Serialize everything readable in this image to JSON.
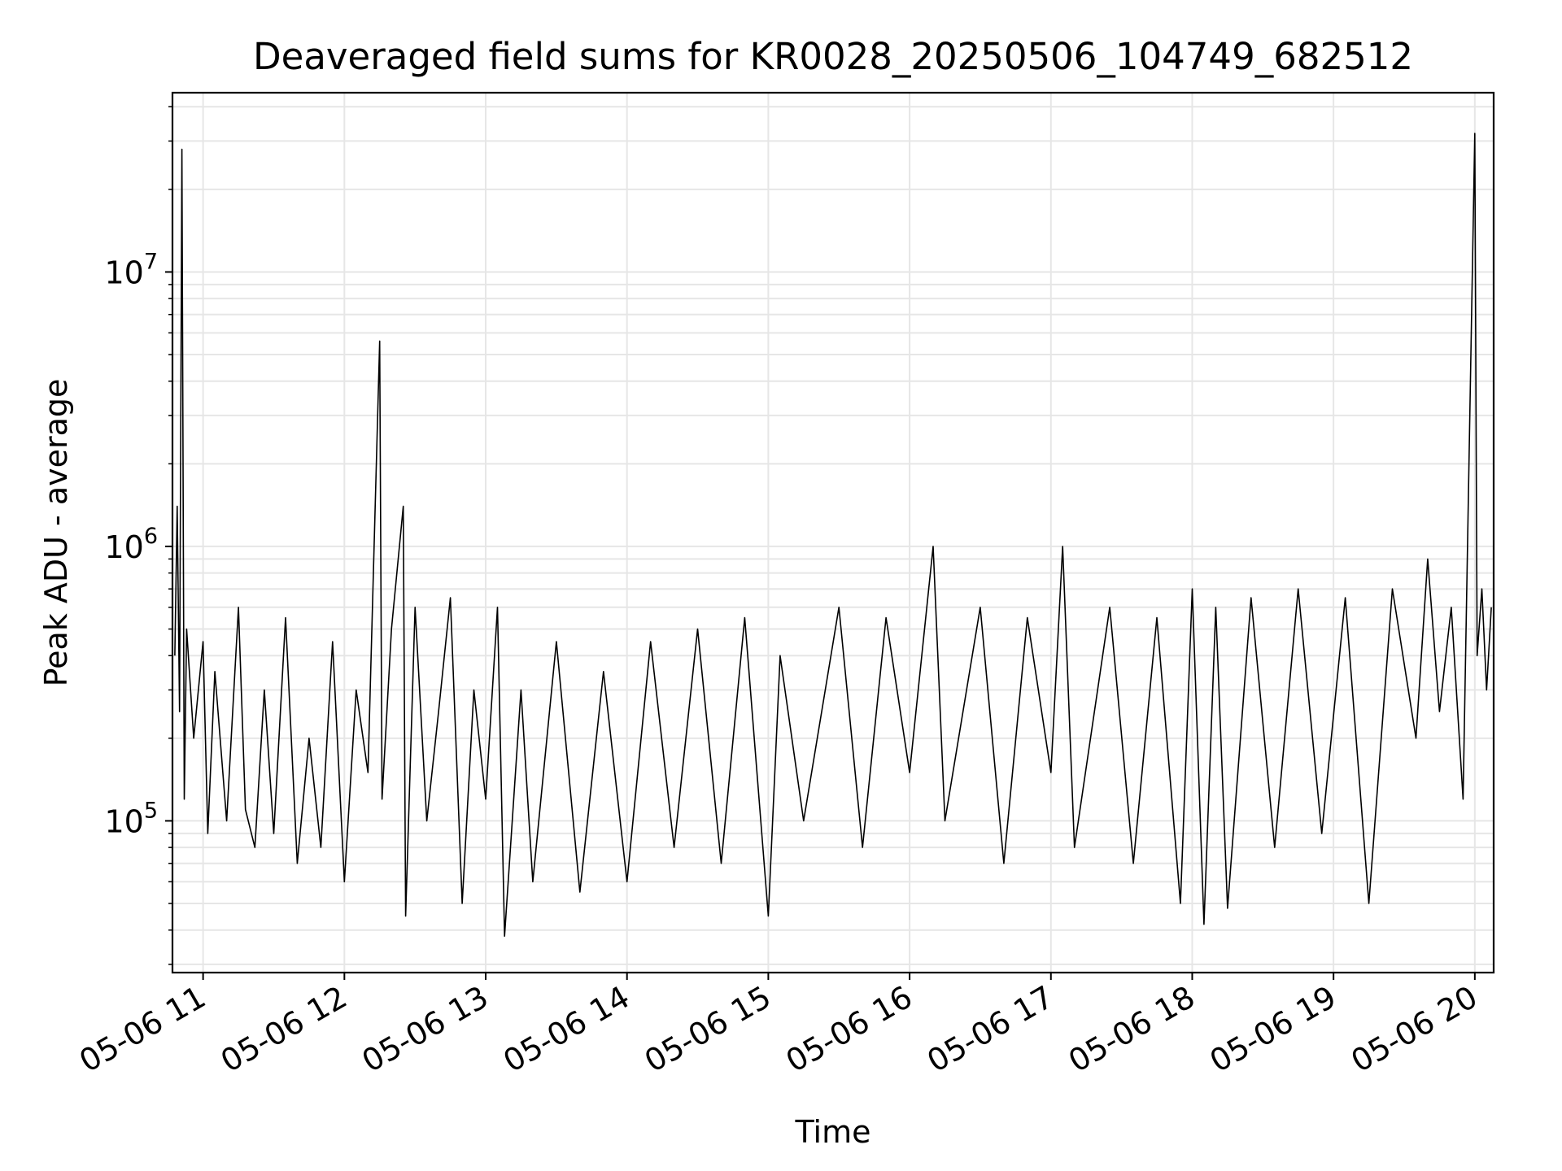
{
  "chart_data": {
    "type": "line",
    "title": "Deaveraged field sums for KR0028_20250506_104749_682512",
    "xlabel": "Time",
    "ylabel": "Peak ADU - average",
    "x_start": "05-06 10:47",
    "x_end": "05-06 20:08",
    "ylim": [
      28000,
      45000000
    ],
    "yscale": "log",
    "grid": true,
    "line_color": "#000000",
    "grid_color": "#e6e6e6",
    "x_ticks": [
      {
        "value": "05-06 11:00",
        "label": "05-06 11"
      },
      {
        "value": "05-06 12:00",
        "label": "05-06 12"
      },
      {
        "value": "05-06 13:00",
        "label": "05-06 13"
      },
      {
        "value": "05-06 14:00",
        "label": "05-06 14"
      },
      {
        "value": "05-06 15:00",
        "label": "05-06 15"
      },
      {
        "value": "05-06 16:00",
        "label": "05-06 16"
      },
      {
        "value": "05-06 17:00",
        "label": "05-06 17"
      },
      {
        "value": "05-06 18:00",
        "label": "05-06 18"
      },
      {
        "value": "05-06 19:00",
        "label": "05-06 19"
      },
      {
        "value": "05-06 20:00",
        "label": "05-06 20"
      }
    ],
    "y_ticks": [
      {
        "value": 100000,
        "base": "10",
        "exp": "5"
      },
      {
        "value": 1000000,
        "base": "10",
        "exp": "6"
      },
      {
        "value": 10000000,
        "base": "10",
        "exp": "7"
      }
    ],
    "series": [
      {
        "points": [
          [
            "05-06 10:48",
            400000
          ],
          [
            "05-06 10:49",
            1400000
          ],
          [
            "05-06 10:50",
            250000
          ],
          [
            "05-06 10:51",
            28000000
          ],
          [
            "05-06 10:52",
            120000
          ],
          [
            "05-06 10:53",
            500000
          ],
          [
            "05-06 10:56",
            200000
          ],
          [
            "05-06 11:00",
            450000
          ],
          [
            "05-06 11:02",
            90000
          ],
          [
            "05-06 11:05",
            350000
          ],
          [
            "05-06 11:10",
            100000
          ],
          [
            "05-06 11:15",
            600000
          ],
          [
            "05-06 11:18",
            110000
          ],
          [
            "05-06 11:22",
            80000
          ],
          [
            "05-06 11:26",
            300000
          ],
          [
            "05-06 11:30",
            90000
          ],
          [
            "05-06 11:35",
            550000
          ],
          [
            "05-06 11:40",
            70000
          ],
          [
            "05-06 11:45",
            200000
          ],
          [
            "05-06 11:50",
            80000
          ],
          [
            "05-06 11:55",
            450000
          ],
          [
            "05-06 12:00",
            60000
          ],
          [
            "05-06 12:05",
            300000
          ],
          [
            "05-06 12:10",
            150000
          ],
          [
            "05-06 12:15",
            5600000
          ],
          [
            "05-06 12:16",
            120000
          ],
          [
            "05-06 12:20",
            500000
          ],
          [
            "05-06 12:25",
            1400000
          ],
          [
            "05-06 12:26",
            45000
          ],
          [
            "05-06 12:30",
            600000
          ],
          [
            "05-06 12:35",
            100000
          ],
          [
            "05-06 12:40",
            250000
          ],
          [
            "05-06 12:45",
            650000
          ],
          [
            "05-06 12:50",
            50000
          ],
          [
            "05-06 12:55",
            300000
          ],
          [
            "05-06 13:00",
            120000
          ],
          [
            "05-06 13:05",
            600000
          ],
          [
            "05-06 13:08",
            38000
          ],
          [
            "05-06 13:15",
            300000
          ],
          [
            "05-06 13:20",
            60000
          ],
          [
            "05-06 13:30",
            450000
          ],
          [
            "05-06 13:40",
            55000
          ],
          [
            "05-06 13:50",
            350000
          ],
          [
            "05-06 14:00",
            60000
          ],
          [
            "05-06 14:10",
            450000
          ],
          [
            "05-06 14:20",
            80000
          ],
          [
            "05-06 14:30",
            500000
          ],
          [
            "05-06 14:40",
            70000
          ],
          [
            "05-06 14:50",
            550000
          ],
          [
            "05-06 15:00",
            45000
          ],
          [
            "05-06 15:05",
            400000
          ],
          [
            "05-06 15:15",
            100000
          ],
          [
            "05-06 15:30",
            600000
          ],
          [
            "05-06 15:40",
            80000
          ],
          [
            "05-06 15:50",
            550000
          ],
          [
            "05-06 16:00",
            150000
          ],
          [
            "05-06 16:10",
            1000000
          ],
          [
            "05-06 16:15",
            100000
          ],
          [
            "05-06 16:30",
            600000
          ],
          [
            "05-06 16:40",
            70000
          ],
          [
            "05-06 16:50",
            550000
          ],
          [
            "05-06 17:00",
            150000
          ],
          [
            "05-06 17:05",
            1000000
          ],
          [
            "05-06 17:10",
            80000
          ],
          [
            "05-06 17:25",
            600000
          ],
          [
            "05-06 17:35",
            70000
          ],
          [
            "05-06 17:45",
            550000
          ],
          [
            "05-06 17:55",
            50000
          ],
          [
            "05-06 18:00",
            700000
          ],
          [
            "05-06 18:05",
            42000
          ],
          [
            "05-06 18:10",
            600000
          ],
          [
            "05-06 18:15",
            48000
          ],
          [
            "05-06 18:25",
            650000
          ],
          [
            "05-06 18:35",
            80000
          ],
          [
            "05-06 18:45",
            700000
          ],
          [
            "05-06 18:55",
            90000
          ],
          [
            "05-06 19:05",
            650000
          ],
          [
            "05-06 19:15",
            50000
          ],
          [
            "05-06 19:25",
            700000
          ],
          [
            "05-06 19:35",
            200000
          ],
          [
            "05-06 19:40",
            900000
          ],
          [
            "05-06 19:45",
            250000
          ],
          [
            "05-06 19:50",
            600000
          ],
          [
            "05-06 19:55",
            120000
          ],
          [
            "05-06 20:00",
            32000000
          ],
          [
            "05-06 20:01",
            400000
          ],
          [
            "05-06 20:03",
            700000
          ],
          [
            "05-06 20:05",
            300000
          ],
          [
            "05-06 20:07",
            600000
          ]
        ]
      }
    ]
  }
}
